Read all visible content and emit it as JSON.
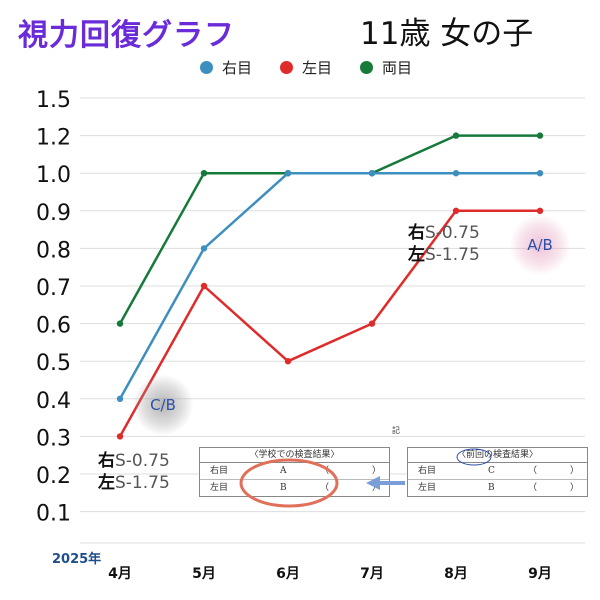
{
  "header": {
    "title": "視力回復グラフ",
    "subtitle": "11歳 女の子"
  },
  "annotations": {
    "left": {
      "right_prefix": "右",
      "right_value": "S-0.75",
      "left_prefix": "左",
      "left_value": "S-1.75"
    },
    "right": {
      "right_prefix": "右",
      "right_value": "S-0.75",
      "left_prefix": "左",
      "left_value": "S-1.75"
    },
    "badge_start": "C/B",
    "badge_end": "A/B",
    "ki": "記"
  },
  "documents": {
    "school": {
      "heading": "〈学校での検査結果〉",
      "rows": [
        {
          "label": "右目",
          "value": "A",
          "paren_open": "（",
          "paren_close": "）"
        },
        {
          "label": "左目",
          "value": "B",
          "paren_open": "（",
          "paren_close": "）"
        }
      ]
    },
    "previous": {
      "heading": "〈前回の検査結果〉",
      "rows": [
        {
          "label": "右目",
          "value": "C",
          "paren_open": "（",
          "paren_close": "）"
        },
        {
          "label": "左目",
          "value": "B",
          "paren_open": "（",
          "paren_close": "）"
        }
      ]
    }
  },
  "colors": {
    "right_eye": "#3d8fc0",
    "left_eye": "#e02b2b",
    "both_eyes": "#157a3a",
    "title": "#6a2bd9",
    "year_label": "#1f4e8c",
    "arrow": "#7a9fd8",
    "circle": "#e0705a"
  },
  "chart_data": {
    "type": "line",
    "title": "視力回復グラフ",
    "subtitle": "11歳 女の子",
    "x_prefix_label": "2025年",
    "categories": [
      "4月",
      "5月",
      "6月",
      "7月",
      "8月",
      "9月"
    ],
    "y_ticks": [
      "1.5",
      "1.2",
      "1.0",
      "0.9",
      "0.8",
      "0.7",
      "0.6",
      "0.5",
      "0.4",
      "0.3",
      "0.2",
      "0.1"
    ],
    "y_scale": "categorical (ticks evenly spaced, non-linear)",
    "grid": true,
    "legend_position": "top",
    "series": [
      {
        "name": "右目",
        "values": [
          "0.4",
          "0.8",
          "1.0",
          "1.0",
          "1.0",
          "1.0"
        ]
      },
      {
        "name": "左目",
        "values": [
          "0.3",
          "0.7",
          "0.5",
          "0.6",
          "0.9",
          "0.9"
        ]
      },
      {
        "name": "両目",
        "values": [
          "0.6",
          "1.0",
          "1.0",
          "1.0",
          "1.2",
          "1.2"
        ]
      }
    ]
  }
}
